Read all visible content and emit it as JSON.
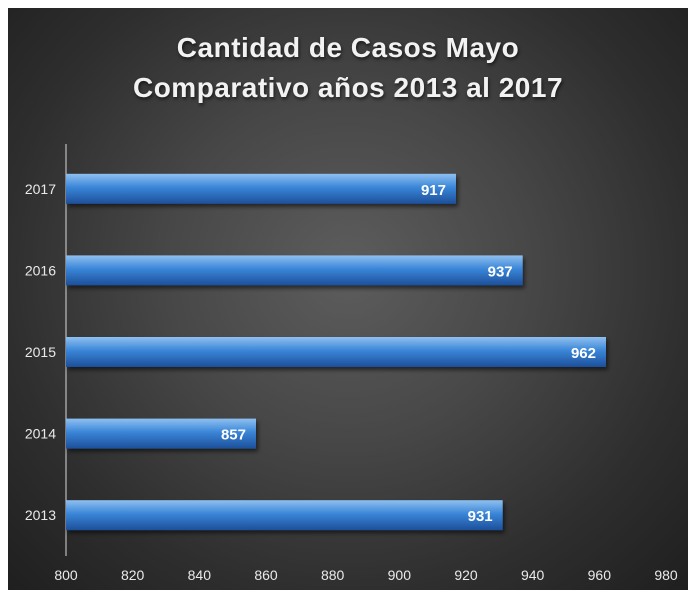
{
  "chart_data": {
    "type": "bar",
    "orientation": "horizontal",
    "title_lines": [
      "Cantidad de Casos Mayo",
      "Comparativo años 2013 al 2017"
    ],
    "categories": [
      "2013",
      "2014",
      "2015",
      "2016",
      "2017"
    ],
    "values": [
      931,
      857,
      962,
      937,
      917
    ],
    "xlim": [
      800,
      980
    ],
    "x_ticks": [
      800,
      820,
      840,
      860,
      880,
      900,
      920,
      940,
      960,
      980
    ],
    "xlabel": "",
    "ylabel": "",
    "grid": false,
    "legend": "none",
    "colors": {
      "bar_top": "#8fc0f0",
      "bar_mid": "#3a86d8",
      "bar_bottom": "#1d4f9a",
      "background": "#3a3a3a",
      "text": "#eaeaea"
    }
  }
}
